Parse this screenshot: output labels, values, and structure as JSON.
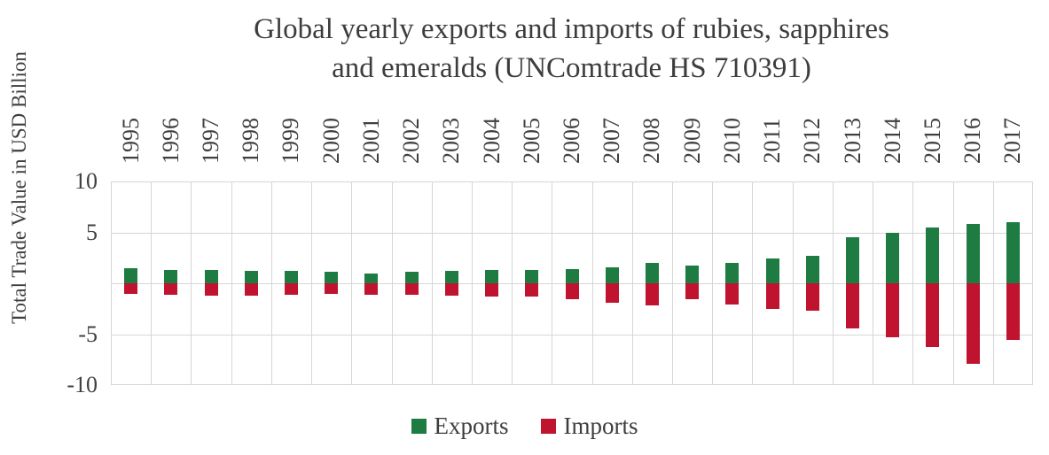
{
  "title": {
    "line1": "Global yearly exports and imports of rubies, sapphires",
    "line2": "and emeralds (UNComtrade HS 710391)"
  },
  "y_axis_label": "Total Trade Value in USD Billion",
  "legend": {
    "exports_label": "Exports",
    "imports_label": "Imports"
  },
  "colors": {
    "exports": "#1e7b41",
    "imports": "#c01330",
    "gridline": "#d6d6d6",
    "text": "#3d3d3d"
  },
  "chart_data": {
    "type": "bar",
    "title": "Global yearly exports and imports of rubies, sapphires and emeralds (UNComtrade HS 710391)",
    "xlabel": "",
    "ylabel": "Total Trade Value in USD Billion",
    "ylim": [
      -10,
      10
    ],
    "gridlines": [
      10,
      5,
      0,
      -5,
      -10
    ],
    "yticks": [
      {
        "value": 10,
        "label": "10"
      },
      {
        "value": 5,
        "label": "5"
      },
      {
        "value": -5,
        "label": "-5"
      },
      {
        "value": -10,
        "label": "-10"
      }
    ],
    "legend_position": "bottom",
    "categories": [
      "1995",
      "1996",
      "1997",
      "1998",
      "1999",
      "2000",
      "2001",
      "2002",
      "2003",
      "2004",
      "2005",
      "2006",
      "2007",
      "2008",
      "2009",
      "2010",
      "2011",
      "2012",
      "2013",
      "2014",
      "2015",
      "2016",
      "2017"
    ],
    "series": [
      {
        "name": "Exports",
        "values": [
          1.5,
          1.3,
          1.3,
          1.2,
          1.2,
          1.1,
          1.0,
          1.1,
          1.2,
          1.3,
          1.3,
          1.4,
          1.6,
          2.0,
          1.7,
          2.0,
          2.4,
          2.7,
          4.5,
          5.0,
          5.5,
          5.8,
          6.0
        ]
      },
      {
        "name": "Imports",
        "values": [
          -1.0,
          -1.1,
          -1.2,
          -1.2,
          -1.1,
          -1.0,
          -1.1,
          -1.1,
          -1.2,
          -1.3,
          -1.3,
          -1.6,
          -1.9,
          -2.2,
          -1.6,
          -2.1,
          -2.5,
          -2.7,
          -4.4,
          -5.3,
          -6.3,
          -7.9,
          -5.6
        ]
      }
    ]
  }
}
